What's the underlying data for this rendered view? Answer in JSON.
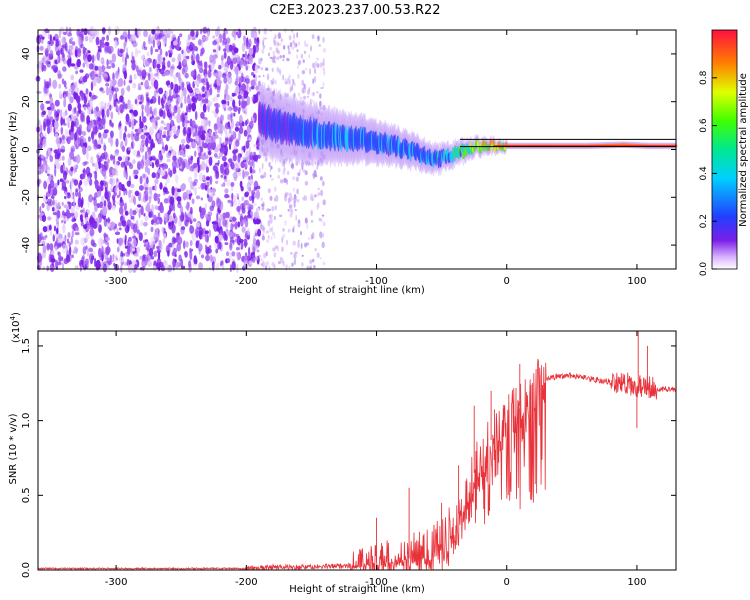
{
  "title": "C2E3.2023.237.00.53.R22",
  "colors": {
    "axis": "#000000",
    "snr_line": "#e8323a",
    "noise": "#7a1ee8",
    "band_low": "#1e40ff",
    "band_mid": "#00c8ff",
    "band_high": "#ff2020"
  },
  "chart_data": [
    {
      "type": "heatmap",
      "xlabel": "Height of straight line (km)",
      "ylabel": "Frequency (Hz)",
      "xlim": [
        -360,
        130
      ],
      "ylim": [
        -50,
        50
      ],
      "xticks": [
        -300,
        -200,
        -100,
        0,
        100
      ],
      "yticks": [
        -40,
        -20,
        0,
        20,
        40
      ],
      "noise_region_km": [
        -360,
        -190
      ],
      "sparse_noise_region_km": [
        -190,
        -140
      ],
      "trace": {
        "x": [
          -190,
          -170,
          -150,
          -130,
          -110,
          -90,
          -70,
          -55,
          -45,
          -35,
          -25,
          -15,
          0,
          30,
          60,
          90,
          110,
          130
        ],
        "y": [
          12,
          9,
          7,
          5,
          4,
          2,
          -1,
          -4,
          -3,
          -1,
          1,
          1.5,
          1.5,
          1.5,
          1.5,
          2,
          1.5,
          1.5
        ],
        "amplitude": [
          0.2,
          0.3,
          0.35,
          0.4,
          0.35,
          0.35,
          0.35,
          0.4,
          0.5,
          0.6,
          0.7,
          0.8,
          0.9,
          0.95,
          0.95,
          0.9,
          0.95,
          0.95
        ]
      },
      "colorbar": {
        "label": "Normalized spectral amplitude",
        "range": [
          0.0,
          1.0
        ],
        "ticks": [
          "0.0",
          "0.2",
          "0.4",
          "0.6",
          "0.8"
        ]
      }
    },
    {
      "type": "line",
      "xlabel": "Height of straight line (km)",
      "ylabel": "SNR (10 * v/v)",
      "scale_label": "(x10",
      "scale_exponent": "4",
      "scale_close": ")",
      "xlim": [
        -360,
        130
      ],
      "ylim": [
        0,
        1.6
      ],
      "xticks": [
        -300,
        -200,
        -100,
        0,
        100
      ],
      "yticks": [
        "0.0",
        "0.5",
        "1.0",
        "1.5"
      ],
      "envelope": {
        "x": [
          -360,
          -200,
          -180,
          -150,
          -120,
          -100,
          -80,
          -60,
          -50,
          -40,
          -30,
          -20,
          -10,
          0,
          10,
          20,
          30,
          40,
          50,
          70,
          90,
          100,
          110,
          120,
          130
        ],
        "y": [
          0.01,
          0.01,
          0.02,
          0.02,
          0.03,
          0.05,
          0.07,
          0.1,
          0.15,
          0.3,
          0.55,
          0.75,
          0.9,
          1.0,
          1.1,
          1.22,
          1.28,
          1.3,
          1.3,
          1.27,
          1.25,
          1.23,
          1.22,
          1.21,
          1.21
        ]
      },
      "spikes": [
        {
          "x": -100,
          "y": 0.35
        },
        {
          "x": -75,
          "y": 0.55
        },
        {
          "x": -50,
          "y": 0.45
        },
        {
          "x": -37,
          "y": 0.7
        },
        {
          "x": -25,
          "y": 1.1
        },
        {
          "x": -12,
          "y": 1.2
        },
        {
          "x": 10,
          "y": 1.38
        },
        {
          "x": 101,
          "y": 1.6
        },
        {
          "x": 108,
          "y": 1.5
        },
        {
          "x": 100,
          "y": 0.95
        }
      ]
    }
  ]
}
